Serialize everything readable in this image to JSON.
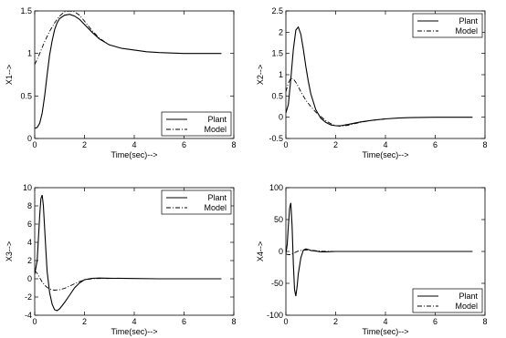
{
  "chart_data": [
    {
      "type": "line",
      "xlabel": "Time(sec)-->",
      "ylabel": "X1-->",
      "xlim": [
        0,
        8
      ],
      "ylim": [
        0,
        1.5
      ],
      "xticks": [
        "0",
        "2",
        "4",
        "6",
        "8"
      ],
      "yticks": [
        "0",
        "0.5",
        "1",
        "1.5"
      ],
      "legend": {
        "position": "bottom-right",
        "entries": [
          "Plant",
          "Model"
        ]
      },
      "series": [
        {
          "name": "Plant",
          "style": "solid",
          "x": [
            0,
            0.1,
            0.2,
            0.3,
            0.4,
            0.5,
            0.6,
            0.7,
            0.8,
            0.9,
            1.0,
            1.2,
            1.4,
            1.6,
            1.8,
            2.0,
            2.3,
            2.6,
            3.0,
            3.5,
            4.0,
            4.5,
            5.0,
            5.5,
            6.0,
            6.5,
            7.0,
            7.5
          ],
          "y": [
            0.12,
            0.13,
            0.18,
            0.3,
            0.5,
            0.75,
            0.98,
            1.15,
            1.28,
            1.36,
            1.41,
            1.45,
            1.46,
            1.44,
            1.4,
            1.34,
            1.25,
            1.17,
            1.1,
            1.06,
            1.04,
            1.02,
            1.01,
            1.005,
            1.0,
            1.0,
            1.0,
            1.0
          ]
        },
        {
          "name": "Model",
          "style": "dashdot",
          "x": [
            0,
            0.1,
            0.2,
            0.3,
            0.4,
            0.5,
            0.6,
            0.7,
            0.8,
            0.9,
            1.0,
            1.2,
            1.4,
            1.6,
            1.8,
            2.0,
            2.3,
            2.6,
            3.0
          ],
          "y": [
            0.87,
            0.93,
            1.0,
            1.07,
            1.14,
            1.2,
            1.26,
            1.31,
            1.36,
            1.4,
            1.44,
            1.49,
            1.5,
            1.49,
            1.45,
            1.38,
            1.27,
            1.18,
            1.1
          ]
        }
      ]
    },
    {
      "type": "line",
      "xlabel": "Time(sec)-->",
      "ylabel": "X2-->",
      "xlim": [
        0,
        8
      ],
      "ylim": [
        -0.5,
        2.5
      ],
      "xticks": [
        "0",
        "2",
        "4",
        "6",
        "8"
      ],
      "yticks": [
        "-0.5",
        "0",
        "0.5",
        "1",
        "1.5",
        "2",
        "2.5"
      ],
      "legend": {
        "position": "top-right",
        "entries": [
          "Plant",
          "Model"
        ]
      },
      "series": [
        {
          "name": "Plant",
          "style": "solid",
          "x": [
            0,
            0.1,
            0.2,
            0.3,
            0.4,
            0.5,
            0.6,
            0.7,
            0.8,
            0.9,
            1.0,
            1.2,
            1.4,
            1.6,
            1.8,
            2.0,
            2.2,
            2.5,
            3.0,
            3.5,
            4.0,
            4.5,
            5.0,
            6.0,
            7.0,
            7.5
          ],
          "y": [
            0.1,
            0.3,
            0.9,
            1.6,
            2.05,
            2.12,
            1.95,
            1.6,
            1.2,
            0.85,
            0.55,
            0.18,
            -0.02,
            -0.12,
            -0.18,
            -0.2,
            -0.2,
            -0.17,
            -0.11,
            -0.07,
            -0.04,
            -0.02,
            -0.01,
            0.0,
            0.0,
            0.0
          ]
        },
        {
          "name": "Model",
          "style": "dashdot",
          "x": [
            0,
            0.1,
            0.2,
            0.3,
            0.4,
            0.5,
            0.6,
            0.7,
            0.8,
            1.0,
            1.2,
            1.4,
            1.6,
            1.8,
            2.0,
            2.2,
            2.5,
            3.0,
            3.5,
            4.0
          ],
          "y": [
            0.6,
            0.8,
            0.92,
            0.9,
            0.82,
            0.72,
            0.6,
            0.5,
            0.4,
            0.25,
            0.12,
            0.02,
            -0.08,
            -0.15,
            -0.2,
            -0.21,
            -0.19,
            -0.12,
            -0.07,
            -0.04
          ]
        }
      ]
    },
    {
      "type": "line",
      "xlabel": "Time(sec)-->",
      "ylabel": "X3-->",
      "xlim": [
        0,
        8
      ],
      "ylim": [
        -4,
        10
      ],
      "xticks": [
        "0",
        "2",
        "4",
        "6",
        "8"
      ],
      "yticks": [
        "-4",
        "-2",
        "0",
        "2",
        "4",
        "6",
        "8",
        "10"
      ],
      "legend": {
        "position": "top-right",
        "entries": [
          "Plant",
          "Model"
        ]
      },
      "series": [
        {
          "name": "Plant",
          "style": "solid",
          "x": [
            0,
            0.1,
            0.15,
            0.2,
            0.25,
            0.3,
            0.35,
            0.4,
            0.45,
            0.5,
            0.6,
            0.7,
            0.8,
            0.9,
            1.0,
            1.2,
            1.4,
            1.6,
            1.8,
            2.0,
            2.3,
            2.6,
            3.0,
            4.0,
            5.0,
            6.0,
            7.0,
            7.5
          ],
          "y": [
            0.5,
            2.0,
            4.5,
            7.0,
            8.8,
            9.2,
            8.0,
            5.5,
            3.0,
            0.8,
            -1.5,
            -2.8,
            -3.4,
            -3.5,
            -3.3,
            -2.6,
            -1.8,
            -1.0,
            -0.45,
            -0.1,
            0.05,
            0.08,
            0.06,
            0.03,
            0.0,
            0.0,
            0.0,
            0.0
          ]
        },
        {
          "name": "Model",
          "style": "dashdot",
          "x": [
            0,
            0.1,
            0.2,
            0.3,
            0.4,
            0.5,
            0.6,
            0.7,
            0.8,
            1.0,
            1.2,
            1.4,
            1.6,
            1.8,
            2.0,
            2.3,
            2.6,
            3.0
          ],
          "y": [
            0.9,
            0.6,
            0.1,
            -0.35,
            -0.7,
            -0.95,
            -1.1,
            -1.2,
            -1.25,
            -1.2,
            -1.05,
            -0.8,
            -0.55,
            -0.3,
            -0.12,
            0.0,
            0.04,
            0.03
          ]
        }
      ]
    },
    {
      "type": "line",
      "xlabel": "Time(sec)-->",
      "ylabel": "X4-->",
      "xlim": [
        0,
        8
      ],
      "ylim": [
        -100,
        100
      ],
      "xticks": [
        "0",
        "2",
        "4",
        "6",
        "8"
      ],
      "yticks": [
        "-100",
        "-50",
        "0",
        "50",
        "100"
      ],
      "legend": {
        "position": "bottom-right",
        "entries": [
          "Plant",
          "Model"
        ]
      },
      "series": [
        {
          "name": "Plant",
          "style": "solid",
          "x": [
            0,
            0.05,
            0.1,
            0.15,
            0.2,
            0.25,
            0.3,
            0.35,
            0.4,
            0.45,
            0.5,
            0.6,
            0.7,
            0.8,
            0.9,
            1.0,
            1.2,
            1.4,
            1.6,
            1.8,
            2.0,
            2.5,
            3.0,
            4.0,
            5.0,
            6.0,
            7.0,
            7.5
          ],
          "y": [
            -3,
            10,
            40,
            68,
            76,
            40,
            -20,
            -60,
            -70,
            -55,
            -35,
            -10,
            2,
            4,
            3,
            1.5,
            0.5,
            -0.5,
            -0.6,
            -0.3,
            0,
            0,
            0,
            0,
            0,
            0,
            0,
            0
          ]
        },
        {
          "name": "Model",
          "style": "dashdot",
          "x": [
            0,
            0.1,
            0.2,
            0.3,
            0.4,
            0.5,
            0.6,
            0.8,
            1.0,
            1.2,
            1.5,
            2.0
          ],
          "y": [
            -4,
            -5,
            -5,
            -3,
            -1,
            0.5,
            1.5,
            2.5,
            2.0,
            1.2,
            0.3,
            0
          ]
        }
      ]
    }
  ]
}
